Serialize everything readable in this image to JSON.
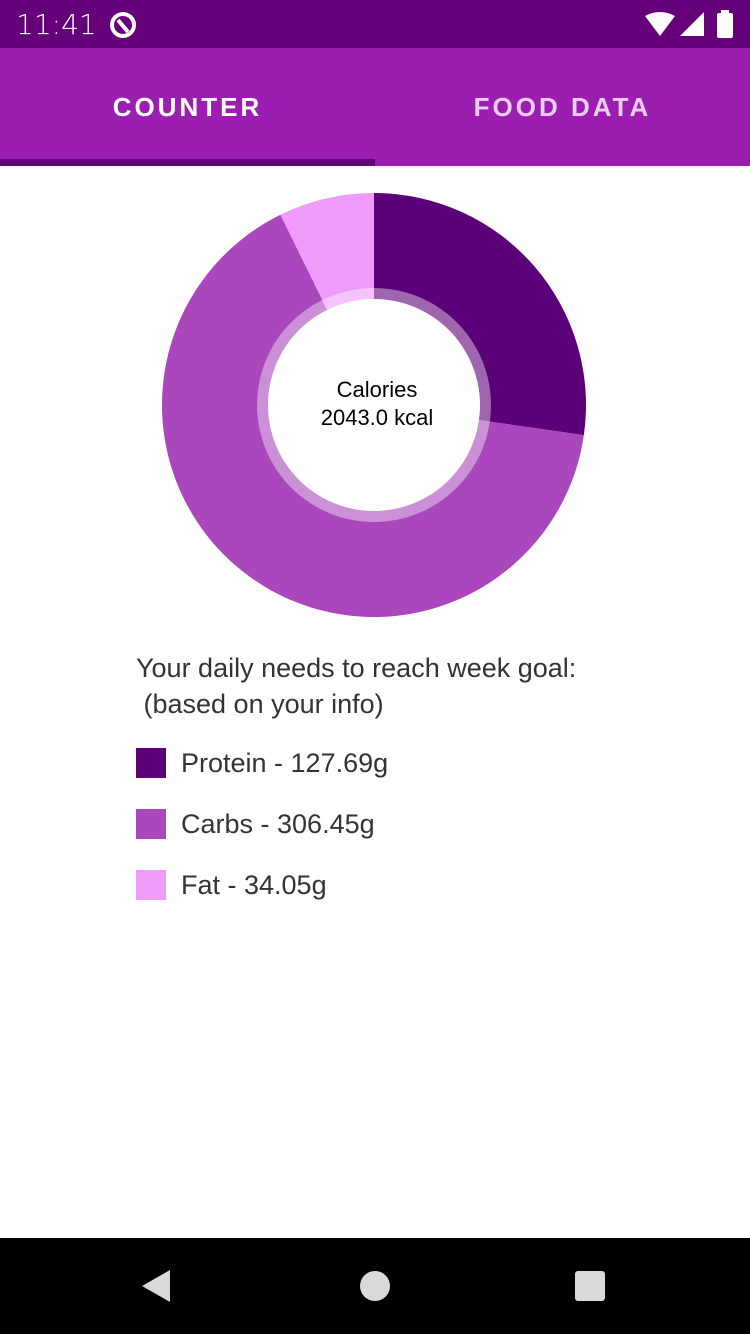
{
  "status_bar": {
    "time": "11:41"
  },
  "tabs": [
    {
      "label": "COUNTER",
      "active": true
    },
    {
      "label": "FOOD DATA",
      "active": false
    }
  ],
  "colors": {
    "status_bar": "#66007a",
    "app_bar": "#9c1eb0",
    "protein": "#5c0079",
    "carbs": "#ab47bc",
    "fat": "#ef9bfa"
  },
  "chart_data": {
    "type": "pie",
    "donut": true,
    "center_label": "Calories",
    "center_value": "2043.0 kcal",
    "categories": [
      "Protein",
      "Carbs",
      "Fat"
    ],
    "values": [
      127.69,
      306.45,
      34.05
    ],
    "unit": "g"
  },
  "summary": {
    "heading": "Your daily needs to reach week goal:\n (based on your info)",
    "items": [
      {
        "label": "Protein - 127.69g"
      },
      {
        "label": "Carbs - 306.45g"
      },
      {
        "label": "Fat - 34.05g"
      }
    ]
  }
}
